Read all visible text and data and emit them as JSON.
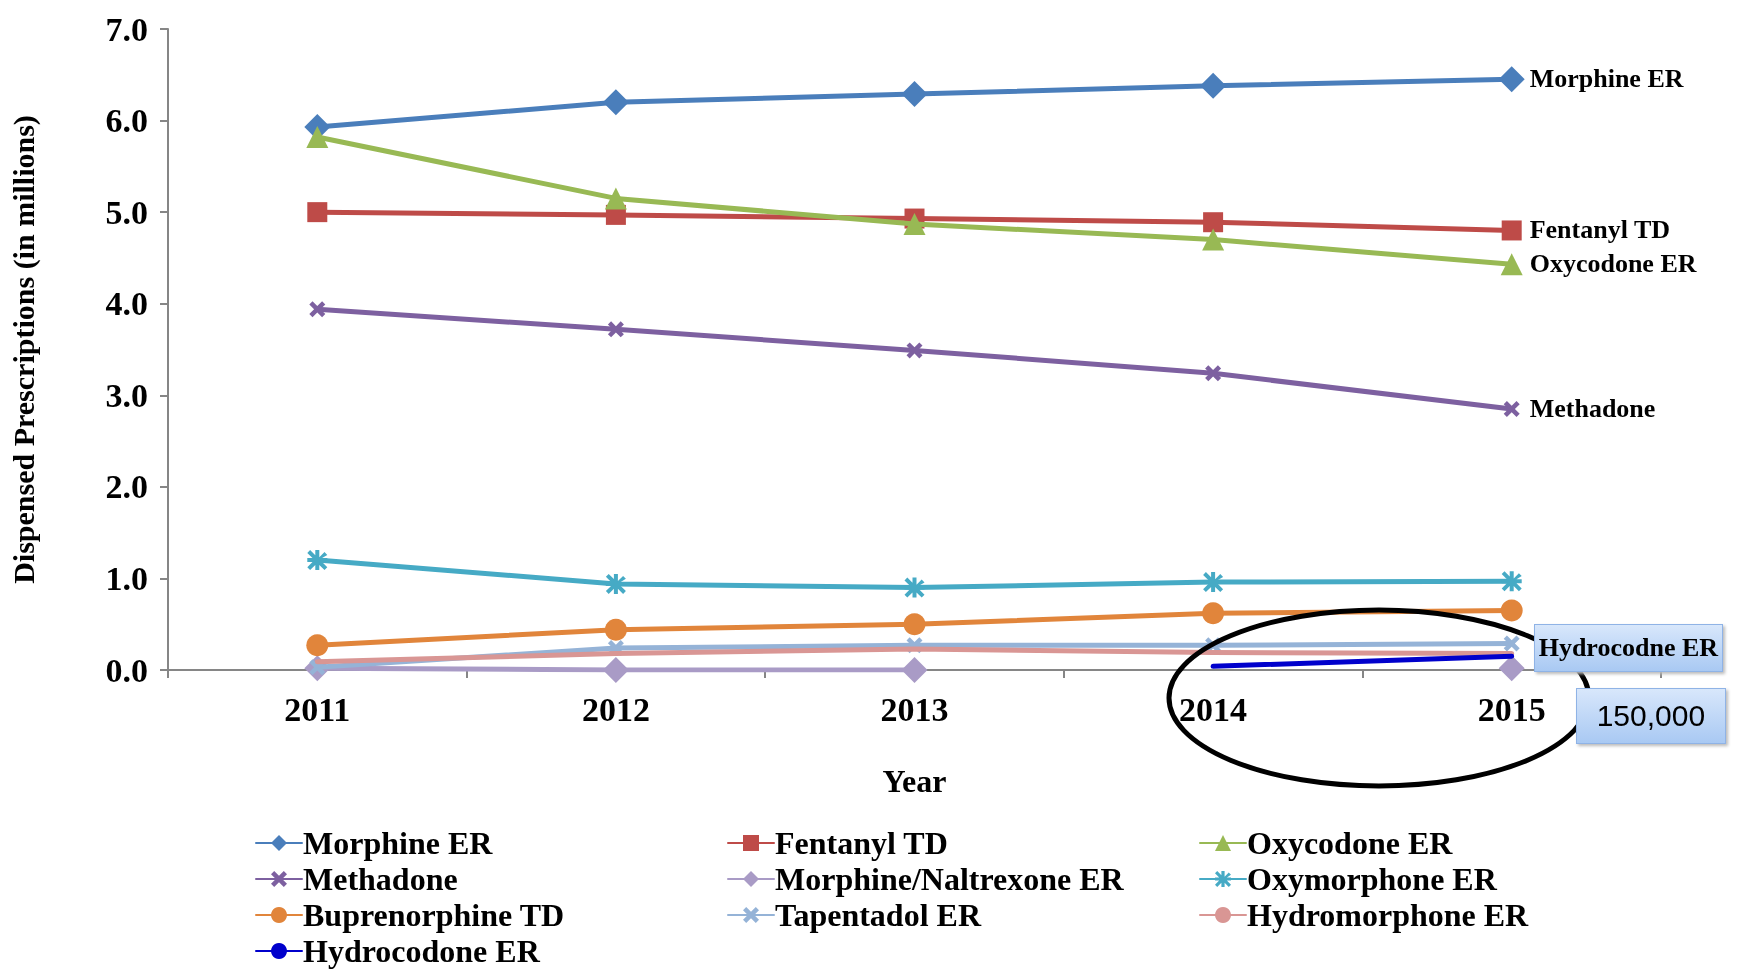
{
  "chart_data": {
    "type": "line",
    "xlabel": "Year",
    "ylabel": "Dispensed Prescriptions (in millions)",
    "categories": [
      "2011",
      "2012",
      "2013",
      "2014",
      "2015"
    ],
    "ylim": [
      0,
      7
    ],
    "yticks": [
      {
        "value": 0,
        "label": "0.0"
      },
      {
        "value": 1,
        "label": "1.0"
      },
      {
        "value": 2,
        "label": "2.0"
      },
      {
        "value": 3,
        "label": "3.0"
      },
      {
        "value": 4,
        "label": "4.0"
      },
      {
        "value": 5,
        "label": "5.0"
      },
      {
        "value": 6,
        "label": "6.0"
      },
      {
        "value": 7,
        "label": "7.0"
      }
    ],
    "grid": false,
    "legend": "bottom",
    "series": [
      {
        "name": "Morphine ER",
        "color": "#4a7ebb",
        "marker": "diamond",
        "values": [
          5.93,
          6.2,
          6.29,
          6.38,
          6.45
        ]
      },
      {
        "name": "Fentanyl TD",
        "color": "#be4b48",
        "marker": "square",
        "values": [
          5.0,
          4.97,
          4.93,
          4.89,
          4.8
        ]
      },
      {
        "name": "Oxycodone ER",
        "color": "#98b954",
        "marker": "triangle",
        "values": [
          5.82,
          5.15,
          4.87,
          4.7,
          4.43
        ]
      },
      {
        "name": "Methadone",
        "color": "#7d60a0",
        "marker": "cross",
        "values": [
          3.94,
          3.72,
          3.49,
          3.24,
          2.85
        ]
      },
      {
        "name": "Morphine/Naltrexone ER",
        "color": "#a99bc6",
        "marker": "diamond",
        "values": [
          0.02,
          0.0,
          0.0,
          null,
          0.02
        ]
      },
      {
        "name": "Oxymorphone ER",
        "color": "#46aac5",
        "marker": "star",
        "values": [
          1.2,
          0.94,
          0.9,
          0.96,
          0.97
        ]
      },
      {
        "name": "Buprenorphine TD",
        "color": "#e1853b",
        "marker": "circle",
        "values": [
          0.27,
          0.44,
          0.5,
          0.62,
          0.65
        ]
      },
      {
        "name": "Tapentadol ER",
        "color": "#95b3d7",
        "marker": "cross",
        "values": [
          0.03,
          0.24,
          0.27,
          0.27,
          0.29
        ]
      },
      {
        "name": "Hydromorphone ER",
        "color": "#d99694",
        "marker": "none",
        "values": [
          0.09,
          0.18,
          0.23,
          0.19,
          0.18
        ]
      },
      {
        "name": "Hydrocodone ER",
        "color": "#0000cc",
        "marker": "none",
        "values": [
          null,
          null,
          null,
          0.04,
          0.15
        ]
      }
    ],
    "annotations": [
      {
        "text": "Morphine ER",
        "x": "2015",
        "y": 6.45
      },
      {
        "text": "Fentanyl TD",
        "x": "2015",
        "y": 4.8
      },
      {
        "text": "Oxycodone ER",
        "x": "2015",
        "y": 4.43
      },
      {
        "text": "Methadone",
        "x": "2015",
        "y": 2.85
      },
      {
        "text": "Hydrocodne ER",
        "x": "2015",
        "y": 0.15
      },
      "150,000"
    ]
  }
}
